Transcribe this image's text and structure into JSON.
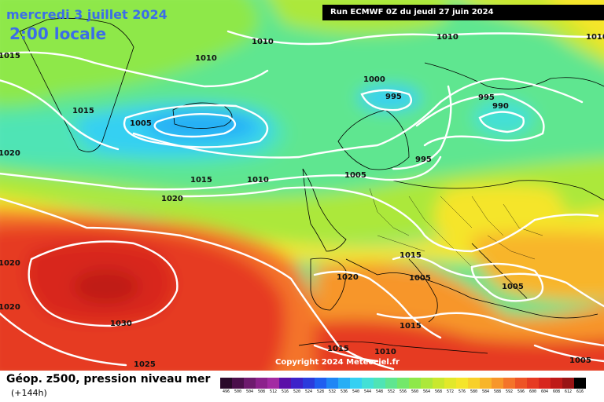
{
  "header": {
    "date": "mercredi 3 juillet 2024",
    "local_time": "2:00 locale",
    "run": "Run ECMWF 0Z du jeudi 27 juin 2024"
  },
  "footer": {
    "product": "Géop. z500, pression niveau mer",
    "horizon": "(+144h)",
    "copyright": "Copyright 2024 Meteociel.fr"
  },
  "isobar_labels": [
    "1015",
    "1010",
    "1010",
    "1010",
    "1010",
    "1000",
    "995",
    "995",
    "990",
    "1015",
    "1005",
    "1020",
    "995",
    "1005",
    "1015",
    "1010",
    "1020",
    "1020",
    "1020",
    "1005",
    "1015",
    "1005",
    "1020",
    "1030",
    "1015",
    "1015",
    "1010",
    "1025",
    "1005"
  ],
  "legend": {
    "values": [
      "496",
      "500",
      "504",
      "508",
      "512",
      "516",
      "520",
      "524",
      "528",
      "532",
      "536",
      "540",
      "544",
      "548",
      "552",
      "556",
      "560",
      "564",
      "568",
      "572",
      "576",
      "580",
      "584",
      "588",
      "592",
      "596",
      "600",
      "604",
      "608",
      "612",
      "616"
    ],
    "colors": [
      "#2a0a2a",
      "#4b0f4b",
      "#6e1a6e",
      "#8c218c",
      "#a32aa3",
      "#5b0fa8",
      "#3d22c9",
      "#2b3bdc",
      "#1f5ef0",
      "#1e86f5",
      "#27aef5",
      "#35d0f2",
      "#43e0d6",
      "#4fe4b5",
      "#5fe690",
      "#73e86a",
      "#8ee84a",
      "#ace83a",
      "#c9e82e",
      "#e2e82a",
      "#f5e52a",
      "#f8d02a",
      "#f8b52a",
      "#f7962a",
      "#f4742a",
      "#ee5426",
      "#e63a22",
      "#d8261e",
      "#bf1a18",
      "#991414",
      "#000000"
    ]
  },
  "colors": {
    "title": "#3b6ee8",
    "run_bg": "#000000",
    "isobar": "#ffffff",
    "border": "#000000"
  }
}
